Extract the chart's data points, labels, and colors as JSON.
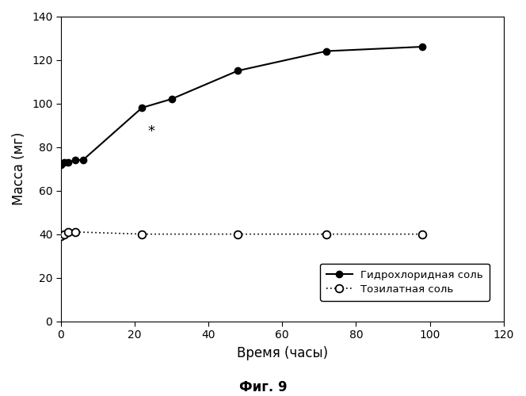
{
  "hcl_x": [
    0,
    1,
    2,
    4,
    6,
    22,
    30,
    48,
    72,
    98
  ],
  "hcl_y": [
    72,
    73,
    73,
    74,
    74,
    98,
    102,
    115,
    124,
    126
  ],
  "tosyl_x": [
    0,
    1,
    2,
    4,
    22,
    48,
    72,
    98
  ],
  "tosyl_y": [
    39,
    40,
    41,
    41,
    40,
    40,
    40,
    40
  ],
  "xlabel": "Время (часы)",
  "ylabel": "Масса (мг)",
  "title": "Фиг. 9",
  "xlim": [
    0,
    120
  ],
  "ylim": [
    0,
    140
  ],
  "xticks": [
    0,
    20,
    40,
    60,
    80,
    100,
    120
  ],
  "yticks": [
    0,
    20,
    40,
    60,
    80,
    100,
    120,
    140
  ],
  "legend_hcl": "Гидрохлоридная соль",
  "legend_tosyl": "Тозилатная соль",
  "star_x": 24.5,
  "star_y": 87,
  "bg_color": "#ffffff",
  "line_color": "#000000"
}
